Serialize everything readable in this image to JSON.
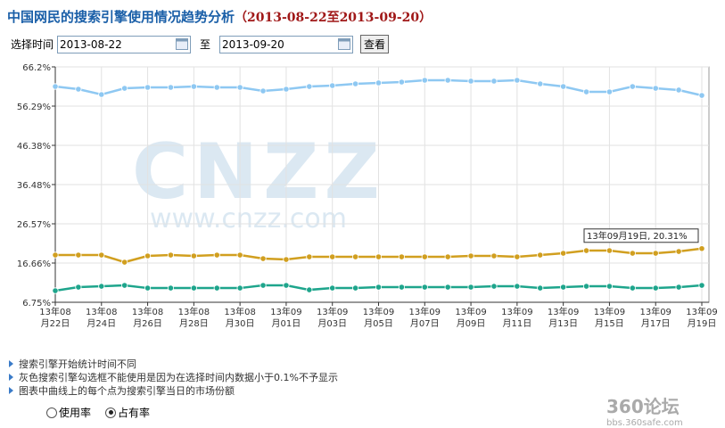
{
  "header": {
    "title": "中国网民的搜索引擎使用情况趋势分析",
    "range": "（2013-08-22至2013-09-20）"
  },
  "form": {
    "label": "选择时间",
    "start": "2013-08-22",
    "separator": "至",
    "end": "2013-09-20",
    "button": "查看"
  },
  "chart_data": {
    "type": "line",
    "categories": [
      "13年08\n月22日",
      null,
      "13年08\n月24日",
      null,
      "13年08\n月26日",
      null,
      "13年08\n月28日",
      null,
      "13年08\n月30日",
      null,
      "13年09\n月01日",
      null,
      "13年09\n月03日",
      null,
      "13年09\n月05日",
      null,
      "13年09\n月07日",
      null,
      "13年09\n月09日",
      null,
      "13年09\n月11日",
      null,
      "13年09\n月13日",
      null,
      "13年09\n月15日",
      null,
      "13年09\n月17日",
      null,
      "13年09\n月19日"
    ],
    "series": [
      {
        "color": "#8ec8f2",
        "values": [
          61.24,
          60.57,
          59.22,
          60.79,
          61.02,
          61.02,
          61.24,
          61.02,
          61.02,
          60.12,
          60.57,
          61.24,
          61.47,
          61.92,
          62.15,
          62.37,
          62.82,
          62.82,
          62.6,
          62.6,
          62.82,
          61.92,
          61.24,
          59.89,
          59.89,
          61.24,
          60.79,
          60.35,
          58.99
        ]
      },
      {
        "color": "#d19f1f",
        "values": [
          18.68,
          18.68,
          18.68,
          16.88,
          18.46,
          18.68,
          18.46,
          18.68,
          18.68,
          17.78,
          17.55,
          18.23,
          18.23,
          18.23,
          18.23,
          18.23,
          18.23,
          18.23,
          18.46,
          18.46,
          18.23,
          18.68,
          19.13,
          19.8,
          19.8,
          19.13,
          19.13,
          19.58,
          20.31
        ]
      },
      {
        "color": "#1ea58c",
        "values": [
          9.67,
          10.57,
          10.79,
          11.02,
          10.34,
          10.34,
          10.34,
          10.34,
          10.34,
          11.02,
          11.02,
          9.89,
          10.34,
          10.34,
          10.57,
          10.57,
          10.57,
          10.57,
          10.57,
          10.79,
          10.79,
          10.34,
          10.57,
          10.79,
          10.79,
          10.34,
          10.34,
          10.57,
          11.02
        ]
      }
    ],
    "ylim": [
      6.75,
      66.2
    ],
    "yticks": [
      {
        "value": 66.2,
        "label": "66.2%"
      },
      {
        "value": 56.29,
        "label": "56.29%"
      },
      {
        "value": 46.38,
        "label": "46.38%"
      },
      {
        "value": 36.48,
        "label": "36.48%"
      },
      {
        "value": 26.57,
        "label": "26.57%"
      },
      {
        "value": 16.66,
        "label": "16.66%"
      },
      {
        "value": 6.75,
        "label": "6.75%"
      }
    ],
    "grid": true,
    "watermark": {
      "logo": "CNZZ",
      "url": "www.cnzz.com"
    },
    "annotation": "13年09月19日, 20.31%"
  },
  "notes": [
    "搜索引擎开始统计时间不同",
    "灰色搜索引擎勾选框不能使用是因为在选择时间内数据小于0.1%不予显示",
    "图表中曲线上的每个点为搜索引擎当日的市场份额"
  ],
  "options": [
    {
      "label": "使用率",
      "checked": false
    },
    {
      "label": "占有率",
      "checked": true
    }
  ],
  "footer": {
    "logo": "360论坛",
    "url": "bbs.360safe.com"
  }
}
